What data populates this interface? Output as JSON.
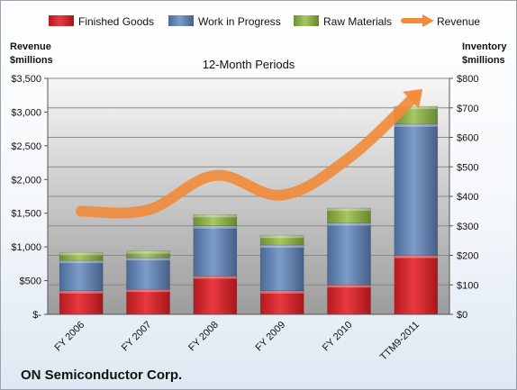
{
  "chart_data": {
    "type": "bar",
    "title": "12-Month Periods",
    "company": "ON Semiconductor Corp.",
    "categories": [
      "FY 2006",
      "FY 2007",
      "FY 2008",
      "FY 2009",
      "FY 2010",
      "TTM9-2011"
    ],
    "stacked_series": [
      {
        "name": "Finished Goods",
        "axis": "right",
        "color": "#d62027",
        "values": [
          80,
          85,
          130,
          80,
          100,
          200
        ]
      },
      {
        "name": "Work in Progress",
        "axis": "right",
        "color": "#5b7fb3",
        "values": [
          103,
          107,
          170,
          155,
          210,
          445
        ]
      },
      {
        "name": "Raw Materials",
        "axis": "right",
        "color": "#8cb04a",
        "values": [
          27,
          23,
          38,
          33,
          50,
          60
        ]
      }
    ],
    "line_series": {
      "name": "Revenue",
      "axis": "left",
      "color": "#f28b3a",
      "values": [
        1530,
        1550,
        2060,
        1770,
        2320,
        3250
      ]
    },
    "left_axis": {
      "label": "Revenue $millions",
      "label_lines": [
        "Revenue",
        "$millions"
      ],
      "min": 0,
      "max": 3500,
      "step": 500,
      "tick_labels": [
        "$-",
        "$500",
        "$1,000",
        "$1,500",
        "$2,000",
        "$2,500",
        "$3,000",
        "$3,500"
      ]
    },
    "right_axis": {
      "label": "Inventory $millions",
      "label_lines": [
        "Inventory",
        "$millions"
      ],
      "min": 0,
      "max": 800,
      "step": 100,
      "tick_labels": [
        "$0",
        "$100",
        "$200",
        "$300",
        "$400",
        "$500",
        "$600",
        "$700",
        "$800"
      ]
    },
    "legend_placement": "top",
    "grid": true
  }
}
